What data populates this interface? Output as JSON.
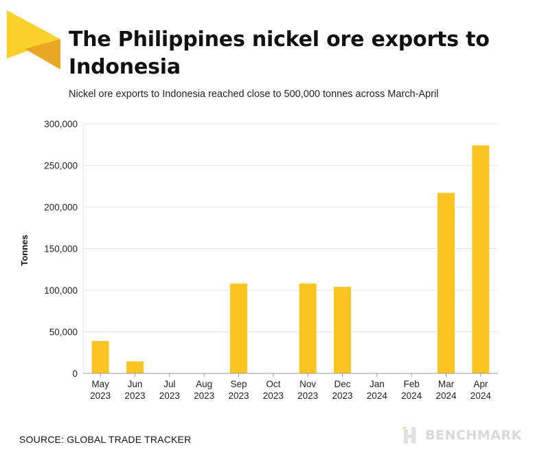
{
  "header": {
    "title": "The Philippines nickel ore exports to Indonesia",
    "subtitle": "Nickel ore exports to Indonesia reached close to 500,000 tonnes across March-April"
  },
  "footer": {
    "source": "SOURCE: GLOBAL TRADE TRACKER",
    "brand": "BENCHMARK"
  },
  "colors": {
    "bar": "#fcc421",
    "logo_light": "#fad12b",
    "logo_dark": "#e8a823",
    "grid": "#e6e6e6",
    "axis": "#999999",
    "brand": "#d9d9d9"
  },
  "chart_data": {
    "type": "bar",
    "title": "The Philippines nickel ore exports to Indonesia",
    "subtitle": "Nickel ore exports to Indonesia reached close to 500,000 tonnes across March-April",
    "xlabel": "",
    "ylabel": "Tonnes",
    "ylim": [
      0,
      300000
    ],
    "yticks": [
      0,
      50000,
      100000,
      150000,
      200000,
      250000,
      300000
    ],
    "ytick_labels": [
      "0",
      "50,000",
      "100,000",
      "150,000",
      "200,000",
      "250,000",
      "300,000"
    ],
    "grid": true,
    "categories": [
      [
        "May",
        "2023"
      ],
      [
        "Jun",
        "2023"
      ],
      [
        "Jul",
        "2023"
      ],
      [
        "Aug",
        "2023"
      ],
      [
        "Sep",
        "2023"
      ],
      [
        "Oct",
        "2023"
      ],
      [
        "Nov",
        "2023"
      ],
      [
        "Dec",
        "2023"
      ],
      [
        "Jan",
        "2024"
      ],
      [
        "Feb",
        "2024"
      ],
      [
        "Mar",
        "2024"
      ],
      [
        "Apr",
        "2024"
      ]
    ],
    "values": [
      39000,
      14500,
      0,
      0,
      108000,
      0,
      108000,
      104000,
      0,
      0,
      217000,
      274000
    ]
  }
}
